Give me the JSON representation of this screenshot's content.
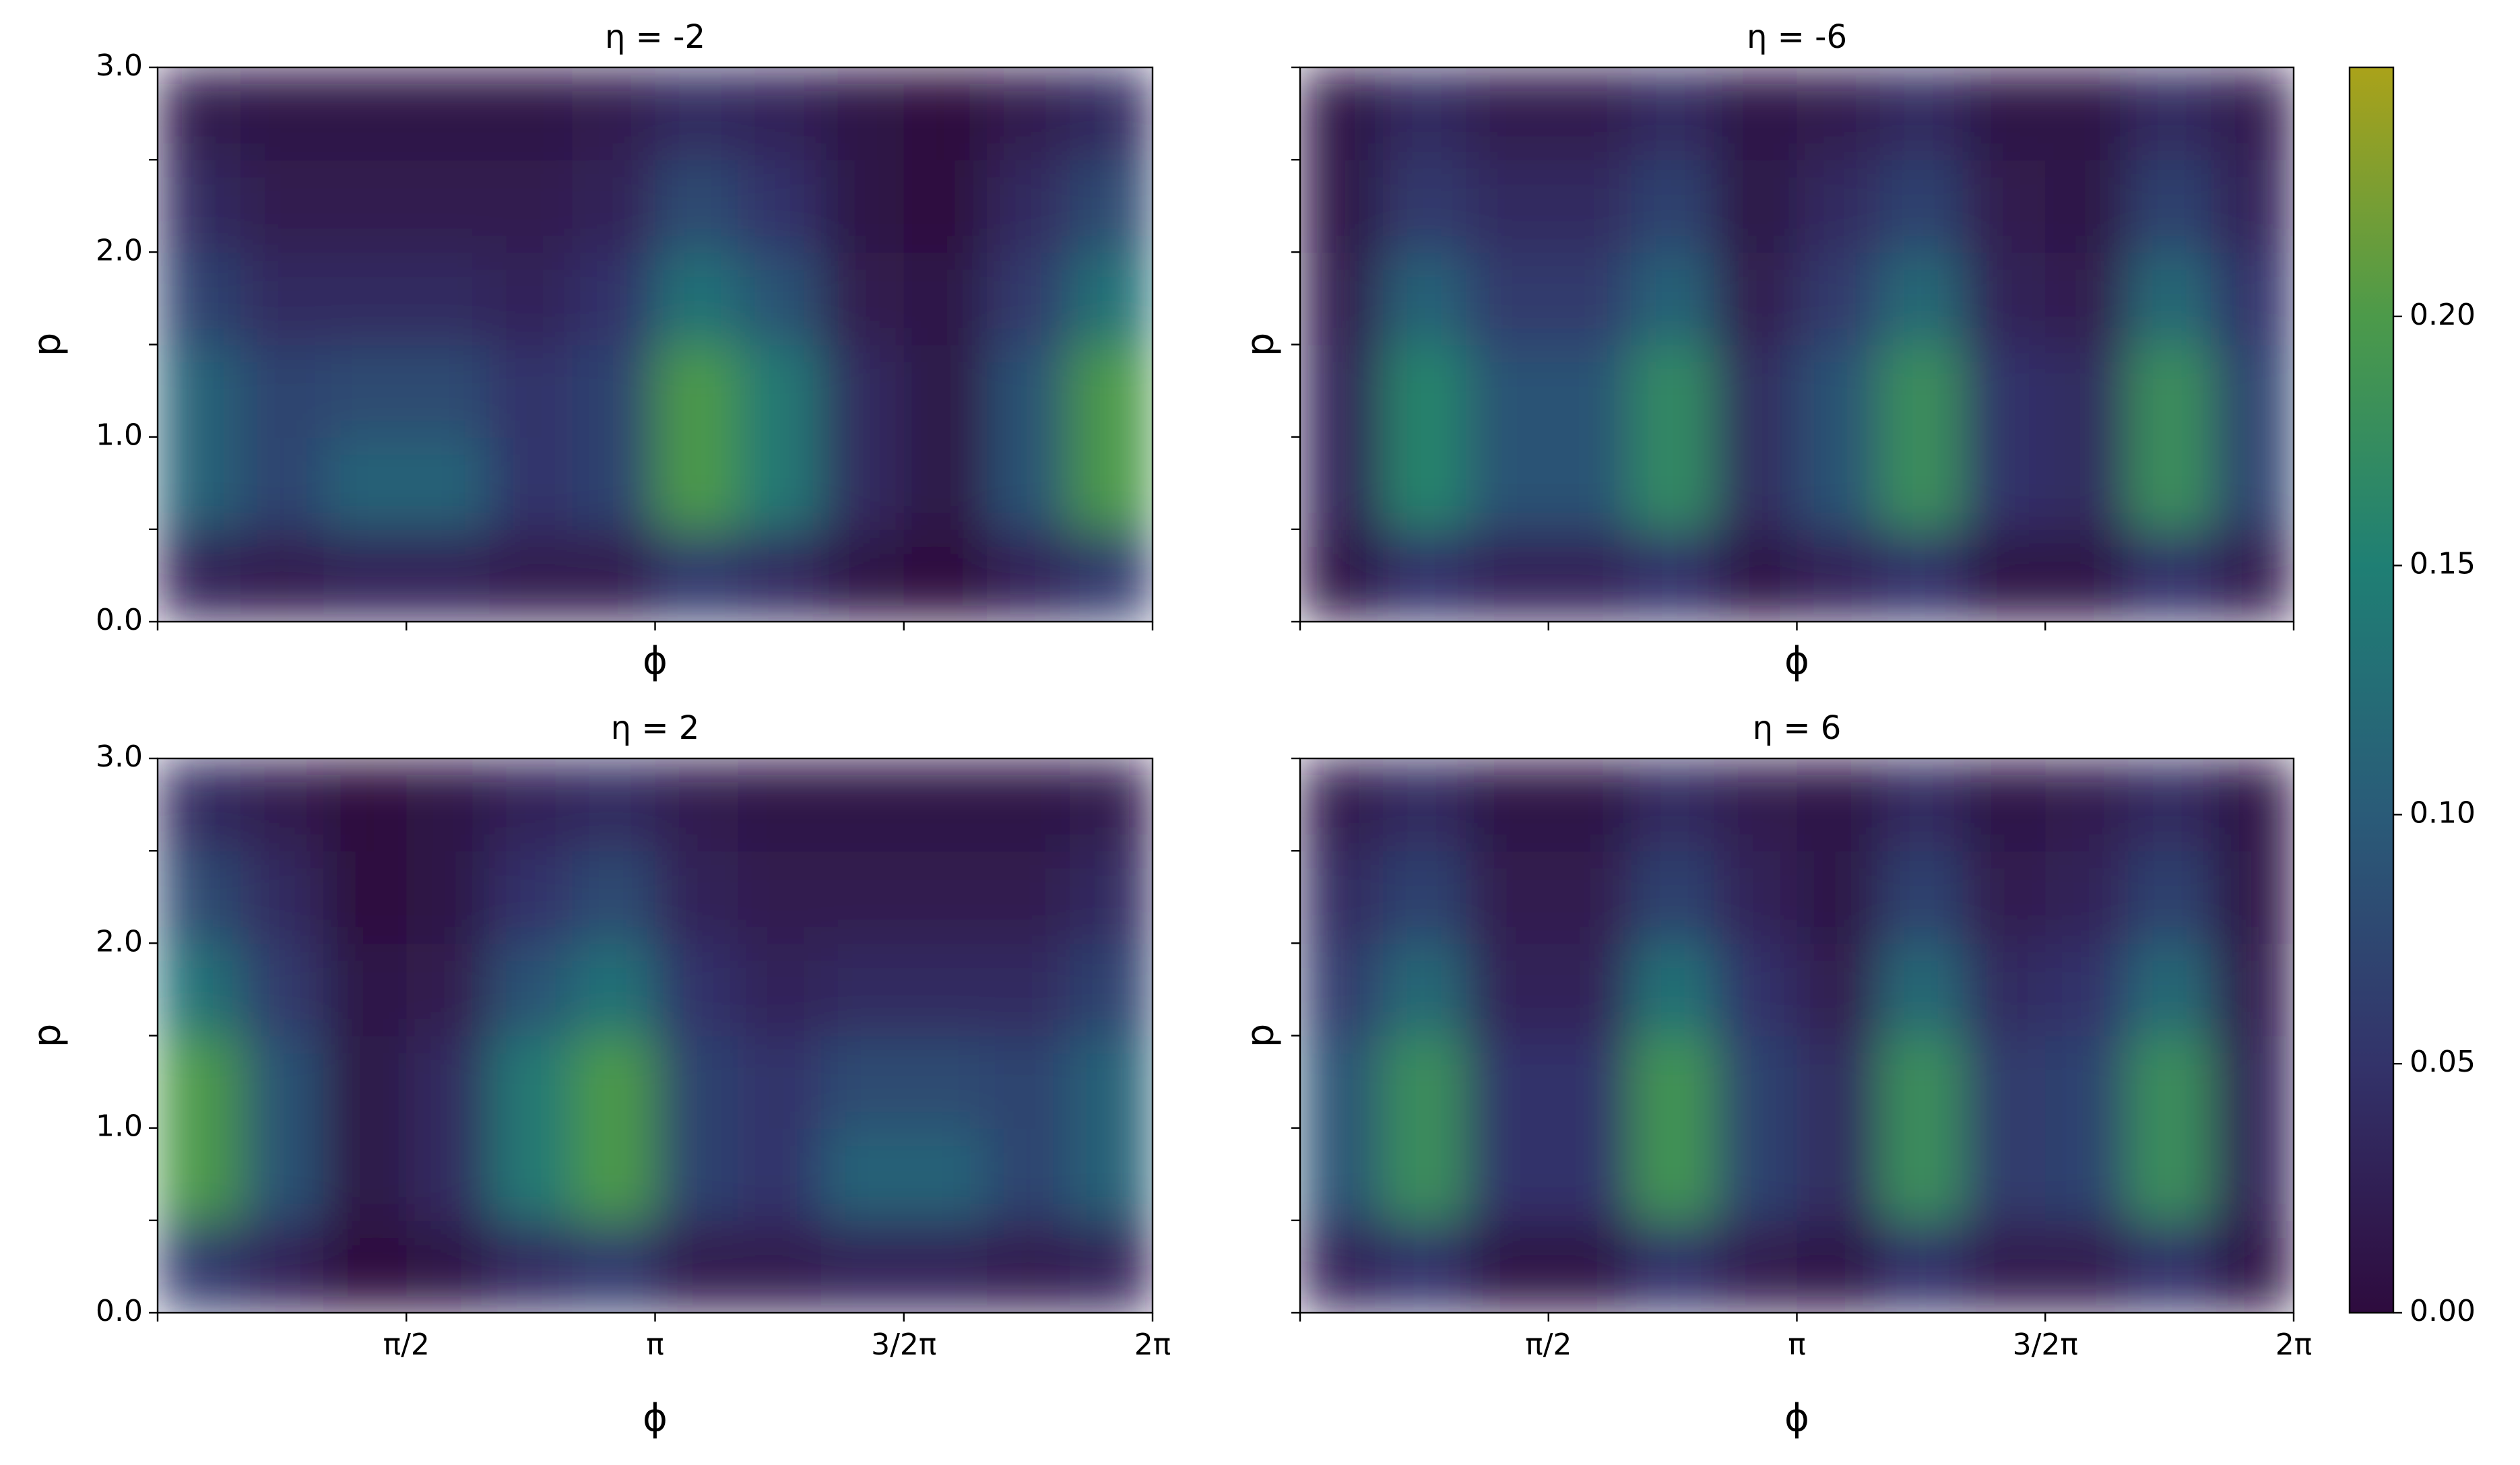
{
  "chart_data": [
    {
      "type": "heatmap",
      "title": "η = -2",
      "xlabel": "ϕ",
      "ylabel": "p",
      "xlim": [
        0,
        6.2832
      ],
      "ylim": [
        0,
        3
      ],
      "xticks": [
        0,
        1.5708,
        3.1416,
        4.7124,
        6.2832
      ],
      "yticks": [
        {
          "value": 0,
          "label": "0.0"
        },
        0.5,
        {
          "value": 1,
          "label": "1.0"
        },
        1.5,
        {
          "value": 2,
          "label": "2.0"
        },
        2.5,
        {
          "value": 3,
          "label": "3.0"
        }
      ],
      "x": [
        0.2618,
        0.7854,
        1.309,
        1.8326,
        2.3562,
        2.8798,
        3.4034,
        3.927,
        4.4506,
        4.9742,
        5.4978,
        6.0214
      ],
      "y": [
        0.25,
        0.75,
        1.25,
        1.75,
        2.25,
        2.75
      ],
      "z": [
        [
          0.03,
          0.02,
          0.03,
          0.03,
          0.02,
          0.02,
          0.06,
          0.04,
          0.01,
          0.0,
          0.03,
          0.06
        ],
        [
          0.11,
          0.07,
          0.11,
          0.11,
          0.05,
          0.07,
          0.2,
          0.14,
          0.04,
          0.01,
          0.09,
          0.2
        ],
        [
          0.11,
          0.07,
          0.08,
          0.08,
          0.05,
          0.07,
          0.2,
          0.14,
          0.04,
          0.01,
          0.09,
          0.2
        ],
        [
          0.07,
          0.04,
          0.04,
          0.04,
          0.03,
          0.05,
          0.13,
          0.09,
          0.02,
          0.01,
          0.06,
          0.13
        ],
        [
          0.04,
          0.02,
          0.02,
          0.02,
          0.02,
          0.03,
          0.08,
          0.05,
          0.01,
          0.0,
          0.04,
          0.08
        ],
        [
          0.02,
          0.01,
          0.01,
          0.01,
          0.01,
          0.02,
          0.04,
          0.03,
          0.01,
          0.0,
          0.02,
          0.04
        ]
      ]
    },
    {
      "type": "heatmap",
      "title": "η = -6",
      "xlabel": "ϕ",
      "ylabel": "p",
      "xlim": [
        0,
        6.2832
      ],
      "ylim": [
        0,
        3
      ],
      "xticks": [
        0,
        1.5708,
        3.1416,
        4.7124,
        6.2832
      ],
      "yticks": [
        0,
        0.5,
        1,
        1.5,
        2,
        2.5,
        3
      ],
      "x": [
        0.2618,
        0.7854,
        1.309,
        1.8326,
        2.3562,
        2.8798,
        3.4034,
        3.927,
        4.4506,
        4.9742,
        5.4978,
        6.0214
      ],
      "y": [
        0.25,
        0.75,
        1.25,
        1.75,
        2.25,
        2.75
      ],
      "z": [
        [
          0.01,
          0.05,
          0.03,
          0.03,
          0.05,
          0.01,
          0.03,
          0.05,
          0.01,
          0.01,
          0.05,
          0.02
        ],
        [
          0.03,
          0.16,
          0.09,
          0.09,
          0.17,
          0.04,
          0.09,
          0.18,
          0.05,
          0.04,
          0.18,
          0.07
        ],
        [
          0.03,
          0.16,
          0.09,
          0.09,
          0.17,
          0.04,
          0.09,
          0.18,
          0.05,
          0.04,
          0.18,
          0.07
        ],
        [
          0.02,
          0.11,
          0.06,
          0.06,
          0.11,
          0.02,
          0.06,
          0.12,
          0.03,
          0.02,
          0.12,
          0.05
        ],
        [
          0.01,
          0.06,
          0.04,
          0.04,
          0.07,
          0.01,
          0.04,
          0.07,
          0.02,
          0.01,
          0.07,
          0.03
        ],
        [
          0.01,
          0.04,
          0.02,
          0.02,
          0.04,
          0.01,
          0.02,
          0.04,
          0.01,
          0.01,
          0.04,
          0.02
        ]
      ]
    },
    {
      "type": "heatmap",
      "title": "η = 2",
      "xlabel": "ϕ",
      "ylabel": "p",
      "xlim": [
        0,
        6.2832
      ],
      "ylim": [
        0,
        3
      ],
      "xticks": [
        0,
        {
          "value": 1.5708,
          "label": "π/2"
        },
        {
          "value": 3.1416,
          "label": "π"
        },
        {
          "value": 4.7124,
          "label": "3/2π"
        },
        {
          "value": 6.2832,
          "label": "2π"
        }
      ],
      "yticks": [
        {
          "value": 0,
          "label": "0.0"
        },
        0.5,
        {
          "value": 1,
          "label": "1.0"
        },
        1.5,
        {
          "value": 2,
          "label": "2.0"
        },
        2.5,
        {
          "value": 3,
          "label": "3.0"
        }
      ],
      "x": [
        0.2618,
        0.7854,
        1.309,
        1.8326,
        2.3562,
        2.8798,
        3.4034,
        3.927,
        4.4506,
        4.9742,
        5.4978,
        6.0214
      ],
      "y": [
        0.25,
        0.75,
        1.25,
        1.75,
        2.25,
        2.75
      ],
      "z": [
        [
          0.06,
          0.03,
          0.0,
          0.01,
          0.04,
          0.06,
          0.02,
          0.02,
          0.03,
          0.03,
          0.02,
          0.03
        ],
        [
          0.2,
          0.09,
          0.01,
          0.04,
          0.14,
          0.2,
          0.07,
          0.05,
          0.11,
          0.11,
          0.07,
          0.11
        ],
        [
          0.2,
          0.09,
          0.01,
          0.04,
          0.14,
          0.2,
          0.07,
          0.05,
          0.08,
          0.08,
          0.07,
          0.11
        ],
        [
          0.13,
          0.06,
          0.01,
          0.02,
          0.09,
          0.13,
          0.05,
          0.03,
          0.04,
          0.04,
          0.04,
          0.07
        ],
        [
          0.08,
          0.04,
          0.0,
          0.01,
          0.05,
          0.08,
          0.03,
          0.02,
          0.02,
          0.02,
          0.02,
          0.04
        ],
        [
          0.04,
          0.02,
          0.0,
          0.01,
          0.03,
          0.04,
          0.02,
          0.01,
          0.01,
          0.01,
          0.01,
          0.02
        ]
      ]
    },
    {
      "type": "heatmap",
      "title": "η = 6",
      "xlabel": "ϕ",
      "ylabel": "p",
      "xlim": [
        0,
        6.2832
      ],
      "ylim": [
        0,
        3
      ],
      "xticks": [
        0,
        {
          "value": 1.5708,
          "label": "π/2"
        },
        {
          "value": 3.1416,
          "label": "π"
        },
        {
          "value": 4.7124,
          "label": "3/2π"
        },
        {
          "value": 6.2832,
          "label": "2π"
        }
      ],
      "yticks": [
        0,
        0.5,
        1,
        1.5,
        2,
        2.5,
        3
      ],
      "x": [
        0.2618,
        0.7854,
        1.309,
        1.8326,
        2.3562,
        2.8798,
        3.4034,
        3.927,
        4.4506,
        4.9742,
        5.4978,
        6.0214
      ],
      "y": [
        0.25,
        0.75,
        1.25,
        1.75,
        2.25,
        2.75
      ],
      "z": [
        [
          0.03,
          0.05,
          0.01,
          0.01,
          0.05,
          0.02,
          0.01,
          0.05,
          0.02,
          0.02,
          0.05,
          0.01
        ],
        [
          0.09,
          0.18,
          0.05,
          0.05,
          0.19,
          0.07,
          0.04,
          0.18,
          0.06,
          0.07,
          0.18,
          0.03
        ],
        [
          0.09,
          0.18,
          0.05,
          0.05,
          0.19,
          0.07,
          0.04,
          0.18,
          0.06,
          0.07,
          0.18,
          0.03
        ],
        [
          0.06,
          0.12,
          0.03,
          0.03,
          0.13,
          0.05,
          0.02,
          0.12,
          0.04,
          0.05,
          0.12,
          0.02
        ],
        [
          0.04,
          0.07,
          0.02,
          0.02,
          0.07,
          0.03,
          0.01,
          0.07,
          0.02,
          0.03,
          0.07,
          0.01
        ],
        [
          0.02,
          0.04,
          0.01,
          0.01,
          0.04,
          0.02,
          0.01,
          0.04,
          0.01,
          0.02,
          0.04,
          0.01
        ]
      ]
    }
  ],
  "colorbar": {
    "colormap": "viridis",
    "clim": [
      0,
      0.25
    ],
    "ticks": [
      {
        "value": 0,
        "label": "0.00"
      },
      0.05,
      {
        "value": 0.1,
        "label": "0.10"
      },
      0.15,
      {
        "value": 0.2,
        "label": "0.20"
      }
    ]
  }
}
